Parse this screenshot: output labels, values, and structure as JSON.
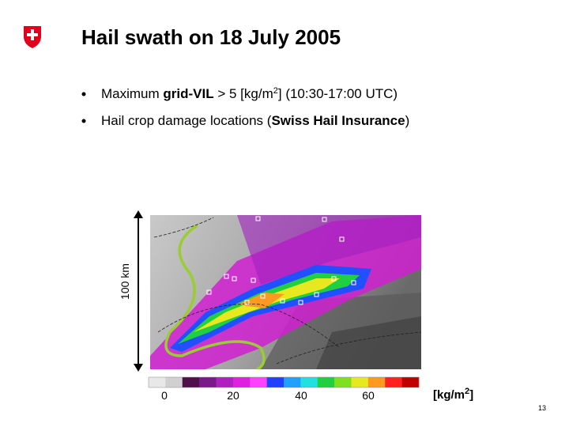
{
  "header": {
    "title": "Hail swath on 18 July 2005"
  },
  "bullets": [
    [
      {
        "text": "Maximum "
      },
      {
        "text": "grid-VIL",
        "bold": true
      },
      {
        "text": " > 5 [kg/m"
      },
      {
        "text": "2",
        "sup": true
      },
      {
        "text": "]   (10:30-17:00 UTC)"
      }
    ],
    [
      {
        "text": "Hail crop damage locations ("
      },
      {
        "text": "Swiss Hail Insurance",
        "bold": true
      },
      {
        "text": ")"
      }
    ]
  ],
  "map": {
    "scale_label": "100 km"
  },
  "colorbar": {
    "labels": [
      0,
      20,
      40,
      60
    ],
    "unit": [
      {
        "text": "[kg/m"
      },
      {
        "text": "2",
        "sup": true
      },
      {
        "text": "]"
      }
    ]
  },
  "footer": {
    "page": 13
  }
}
